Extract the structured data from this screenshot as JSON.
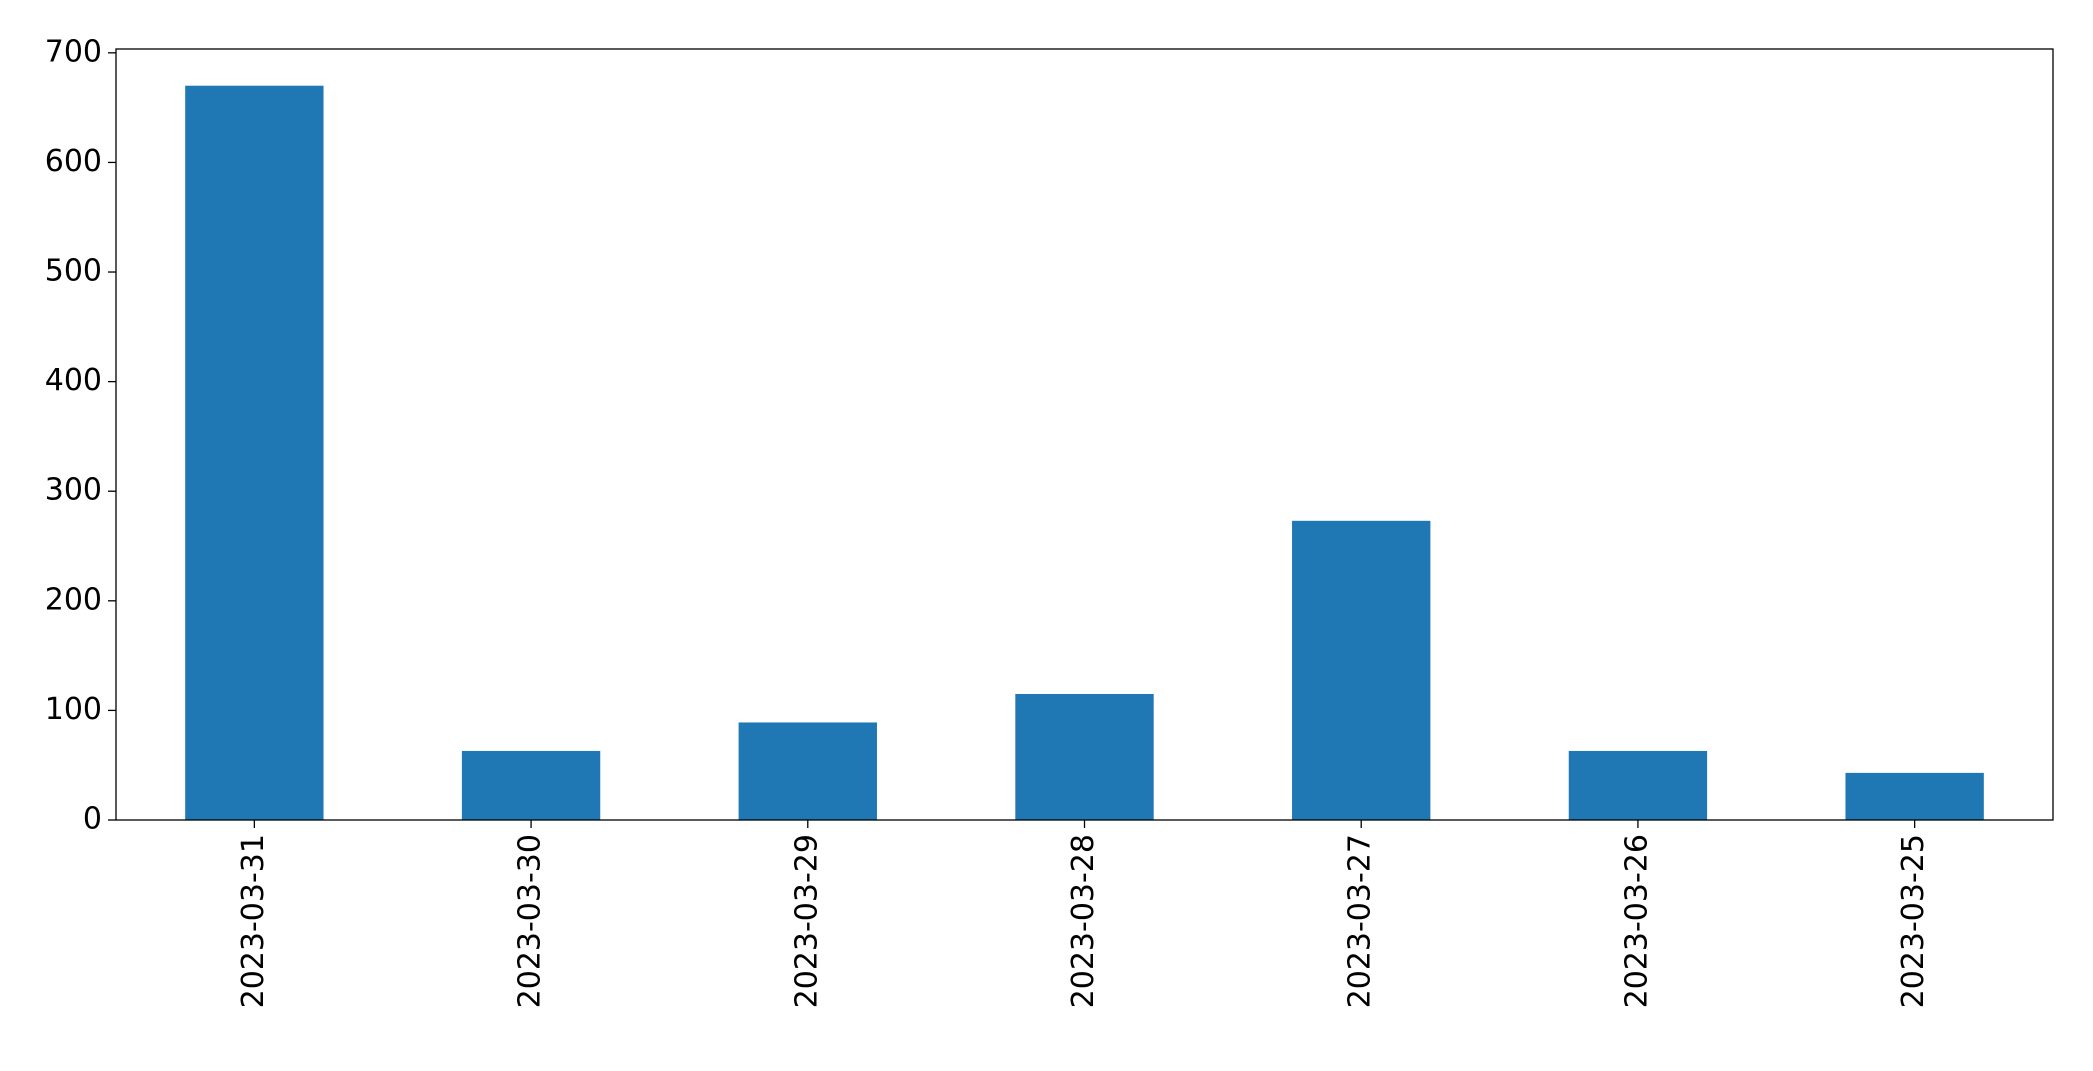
{
  "chart_data": {
    "type": "bar",
    "categories": [
      "2023-03-31",
      "2023-03-30",
      "2023-03-29",
      "2023-03-28",
      "2023-03-27",
      "2023-03-26",
      "2023-03-25"
    ],
    "values": [
      670,
      63,
      89,
      115,
      273,
      63,
      43
    ],
    "color": "#1f77b4",
    "ylim": [
      0,
      703.5
    ],
    "yticks": [
      0,
      100,
      200,
      300,
      400,
      500,
      600,
      700
    ]
  }
}
